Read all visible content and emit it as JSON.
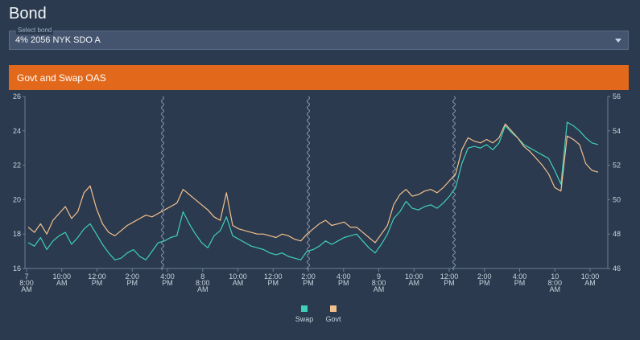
{
  "page": {
    "title": "Bond"
  },
  "bond_select": {
    "legend": "Select bond",
    "value": "4% 2056 NYK SDO A"
  },
  "panel": {
    "title": "Govt and Swap OAS"
  },
  "colors": {
    "swap": "#3fd1b8",
    "govt": "#f2c08d",
    "header": "#e2691b",
    "background": "#2b3a4e"
  },
  "chart_data": {
    "type": "line",
    "title": "Govt and Swap OAS",
    "y_left": {
      "ticks": [
        16,
        18,
        20,
        22,
        24,
        26
      ],
      "range": [
        16,
        26
      ]
    },
    "y_right": {
      "ticks": [
        46,
        48,
        50,
        52,
        54,
        56
      ],
      "range": [
        46,
        56
      ]
    },
    "x_tick_labels": [
      [
        "7",
        "8:00",
        "AM"
      ],
      [
        "10:00",
        "AM"
      ],
      [
        "12:00",
        "PM"
      ],
      [
        "2:00",
        "PM"
      ],
      [
        "4:00",
        "PM"
      ],
      [
        "8",
        "8:00",
        "AM"
      ],
      [
        "10:00",
        "AM"
      ],
      [
        "12:00",
        "PM"
      ],
      [
        "2:00",
        "PM"
      ],
      [
        "4:00",
        "PM"
      ],
      [
        "9",
        "8:00",
        "AM"
      ],
      [
        "10:00",
        "AM"
      ],
      [
        "12:00",
        "PM"
      ],
      [
        "2:00",
        "PM"
      ],
      [
        "4:00",
        "PM"
      ],
      [
        "10",
        "8:00",
        "AM"
      ],
      [
        "10:00",
        "AM"
      ]
    ],
    "day_breaks": 3,
    "legend_position": "bottom",
    "series": [
      {
        "name": "Swap",
        "axis": "left",
        "values": [
          17.5,
          17.3,
          17.8,
          17.1,
          17.6,
          17.9,
          18.1,
          17.4,
          17.8,
          18.3,
          18.6,
          18.0,
          17.4,
          16.9,
          16.5,
          16.6,
          16.9,
          17.1,
          16.7,
          16.5,
          17.0,
          17.5,
          17.6,
          17.8,
          17.9,
          19.3,
          18.6,
          18.0,
          17.5,
          17.2,
          17.9,
          18.2,
          19.0,
          17.9,
          17.7,
          17.5,
          17.3,
          17.2,
          17.1,
          16.9,
          16.8,
          16.9,
          16.7,
          16.6,
          16.5,
          17.0,
          17.1,
          17.3,
          17.6,
          17.4,
          17.6,
          17.8,
          17.9,
          18.0,
          17.6,
          17.2,
          16.9,
          17.4,
          18.0,
          18.9,
          19.3,
          19.9,
          19.5,
          19.4,
          19.6,
          19.7,
          19.5,
          19.8,
          20.2,
          20.7,
          22.1,
          23.0,
          23.1,
          23.0,
          23.2,
          22.9,
          23.3,
          24.3,
          23.9,
          23.6,
          23.2,
          23.0,
          22.8,
          22.6,
          22.4,
          21.7,
          20.9,
          24.5,
          24.3,
          24.0,
          23.6,
          23.3,
          23.2
        ]
      },
      {
        "name": "Govt",
        "axis": "right",
        "values": [
          48.4,
          48.1,
          48.6,
          48.0,
          48.8,
          49.2,
          49.6,
          48.9,
          49.3,
          50.4,
          50.8,
          49.5,
          48.6,
          48.1,
          47.9,
          48.2,
          48.5,
          48.7,
          48.9,
          49.1,
          49.0,
          49.2,
          49.4,
          49.6,
          49.8,
          50.6,
          50.3,
          50.0,
          49.7,
          49.4,
          49.0,
          48.8,
          50.4,
          48.5,
          48.3,
          48.2,
          48.1,
          48.0,
          48.0,
          47.9,
          47.8,
          48.0,
          47.9,
          47.7,
          47.6,
          48.0,
          48.3,
          48.6,
          48.8,
          48.5,
          48.6,
          48.7,
          48.4,
          48.4,
          48.1,
          47.8,
          47.5,
          48.0,
          48.5,
          49.7,
          50.3,
          50.6,
          50.2,
          50.3,
          50.5,
          50.6,
          50.4,
          50.7,
          51.1,
          51.5,
          52.9,
          53.6,
          53.4,
          53.3,
          53.5,
          53.3,
          53.6,
          54.4,
          54.0,
          53.6,
          53.1,
          52.8,
          52.4,
          52.0,
          51.5,
          50.7,
          50.5,
          53.7,
          53.5,
          53.2,
          52.1,
          51.7,
          51.6
        ]
      }
    ]
  }
}
